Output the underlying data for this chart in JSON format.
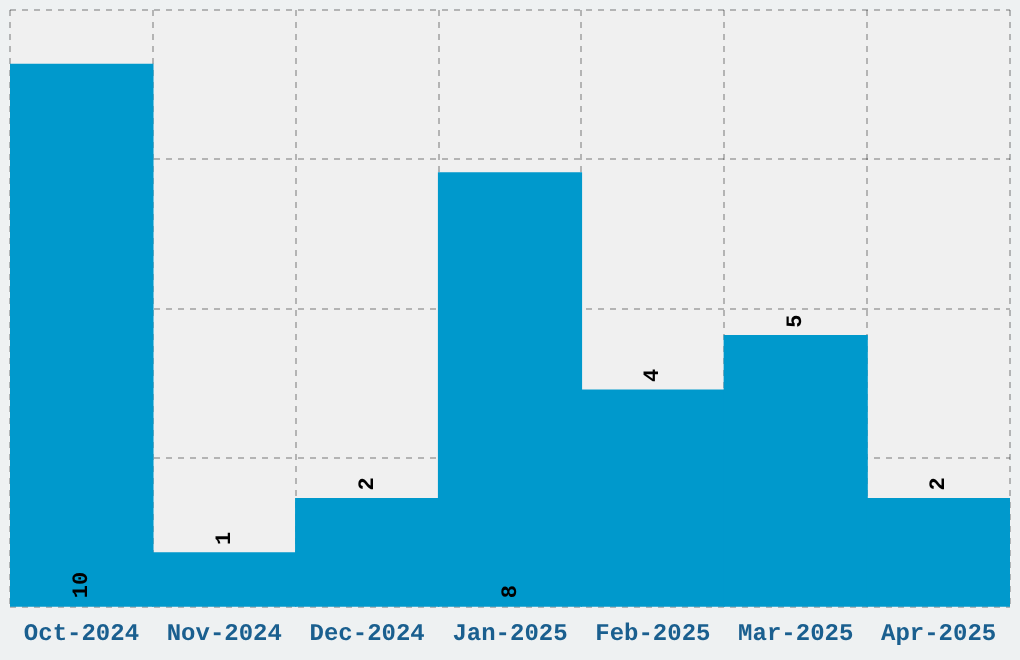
{
  "chart_data": {
    "type": "bar",
    "categories": [
      "Oct-2024",
      "Nov-2024",
      "Dec-2024",
      "Jan-2025",
      "Feb-2025",
      "Mar-2025",
      "Apr-2025"
    ],
    "values": [
      10,
      1,
      2,
      8,
      4,
      5,
      2
    ],
    "color": "#0099cc",
    "ylim": [
      0,
      11
    ],
    "yticks": [
      {
        "value": 0,
        "label": null
      },
      {
        "value": 2.75,
        "label": null
      },
      {
        "value": 5.5,
        "label": null
      },
      {
        "value": 8.25,
        "label": null
      },
      {
        "value": 11,
        "label": null
      }
    ],
    "tick_labels": "x",
    "grid": true,
    "data_labels": true
  }
}
